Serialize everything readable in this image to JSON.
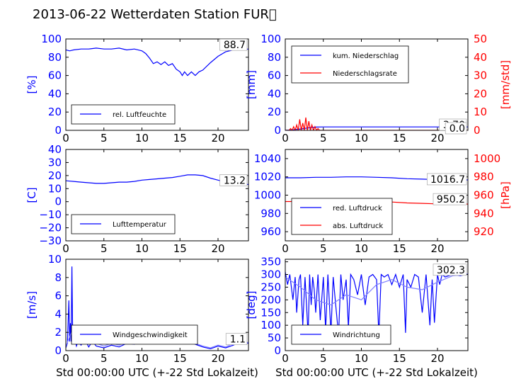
{
  "figure": {
    "title": "2013-06-22 Wetterdaten Station FUR\u0000"
  },
  "colors": {
    "primary": "#0000ff",
    "secondary": "#ff0000",
    "light": "#8080ff"
  },
  "chart_data": [
    {
      "id": "humidity",
      "type": "line",
      "ylabel": "[%]",
      "xlim": [
        0,
        24
      ],
      "ylim": [
        0,
        100
      ],
      "xticks": [
        "0",
        "5",
        "10",
        "15",
        "20"
      ],
      "yticks": [
        "0",
        "20",
        "40",
        "60",
        "80",
        "100"
      ],
      "legend": {
        "placement": "lower-left",
        "entries": [
          "rel. Luftfeuchte"
        ]
      },
      "last_value": "88.7",
      "series": [
        {
          "name": "rel. Luftfeuchte",
          "color": "#0000ff",
          "x": [
            0,
            0.5,
            1,
            2,
            3,
            4,
            5,
            6,
            7,
            8,
            9,
            10,
            10.5,
            11,
            11.5,
            12,
            12.5,
            13,
            13.5,
            14,
            14.5,
            15,
            15.3,
            15.6,
            16,
            16.5,
            17,
            17.5,
            18,
            19,
            20,
            21,
            22,
            23,
            24
          ],
          "y": [
            88,
            87,
            88,
            89,
            89,
            90,
            89,
            89,
            90,
            88,
            89,
            87,
            84,
            79,
            73,
            75,
            72,
            75,
            71,
            73,
            67,
            64,
            60,
            64,
            60,
            64,
            60,
            64,
            66,
            74,
            81,
            86,
            88,
            88,
            89
          ]
        }
      ]
    },
    {
      "id": "precip",
      "type": "line",
      "ylabel": "[mm]",
      "ylabel_right": "[mm/std]",
      "xlim": [
        0,
        24
      ],
      "ylim": [
        0,
        100
      ],
      "ylim_right": [
        0,
        50
      ],
      "xticks": [
        "0",
        "5",
        "10",
        "15",
        "20"
      ],
      "yticks": [
        "0",
        "20",
        "40",
        "60",
        "80",
        "100"
      ],
      "yticks_right": [
        "0",
        "10",
        "20",
        "30",
        "40",
        "50"
      ],
      "legend": {
        "placement": "upper-left",
        "entries": [
          "kum. Niederschlag",
          "Niederschlagsrate"
        ]
      },
      "last_values": [
        "3.70",
        "0.0"
      ],
      "series": [
        {
          "name": "kum. Niederschlag",
          "color": "#0000ff",
          "axis": "left",
          "x": [
            0,
            0.5,
            1,
            1.5,
            2,
            2.5,
            3,
            3.5,
            4,
            5,
            10,
            15,
            20,
            24
          ],
          "y": [
            0,
            0.2,
            0.5,
            1,
            1.5,
            2,
            2.6,
            3.2,
            3.6,
            3.7,
            3.7,
            3.7,
            3.7,
            3.7
          ]
        },
        {
          "name": "Niederschlagsrate",
          "color": "#ff0000",
          "axis": "right",
          "x": [
            0,
            0.5,
            0.7,
            0.9,
            1.1,
            1.3,
            1.5,
            1.7,
            1.9,
            2.1,
            2.3,
            2.5,
            2.7,
            2.9,
            3.1,
            3.3,
            3.5,
            3.7,
            3.9,
            4.1,
            4.3,
            4.5,
            5,
            24
          ],
          "y": [
            0,
            0,
            1,
            0,
            2,
            0,
            3,
            0,
            6,
            0,
            4,
            0,
            7,
            0,
            5,
            0,
            3,
            0,
            2,
            0,
            1,
            0,
            0,
            0
          ]
        }
      ]
    },
    {
      "id": "temperature",
      "type": "line",
      "ylabel": "[C]",
      "xlim": [
        0,
        24
      ],
      "ylim": [
        -30,
        40
      ],
      "xticks": [
        "0",
        "5",
        "10",
        "15",
        "20"
      ],
      "yticks": [
        "−30",
        "−20",
        "−10",
        "0",
        "10",
        "20",
        "30",
        "40"
      ],
      "legend": {
        "placement": "lower-left",
        "entries": [
          "Lufttemperatur"
        ]
      },
      "last_value": "13.2",
      "series": [
        {
          "name": "Lufttemperatur",
          "color": "#0000ff",
          "x": [
            0,
            1,
            2,
            3,
            4,
            5,
            6,
            7,
            8,
            9,
            10,
            11,
            12,
            13,
            14,
            15,
            16,
            17,
            18,
            19,
            20,
            21,
            22,
            23,
            24
          ],
          "y": [
            16,
            15.5,
            15,
            14.5,
            14,
            14,
            14.5,
            15,
            15,
            15.5,
            16.5,
            17,
            17.5,
            18,
            18.5,
            19.5,
            20.5,
            20.5,
            20,
            18,
            16.5,
            15,
            14,
            13.5,
            13.2
          ]
        }
      ]
    },
    {
      "id": "pressure",
      "type": "line",
      "ylabel_right": "[hPa]",
      "xlim": [
        0,
        24
      ],
      "ylim": [
        950,
        1050
      ],
      "ylim_right": [
        910,
        1010
      ],
      "xticks": [
        "0",
        "5",
        "10",
        "15",
        "20"
      ],
      "yticks": [
        "960",
        "980",
        "1000",
        "1020",
        "1040"
      ],
      "yticks_right": [
        "920",
        "940",
        "960",
        "980",
        "1000"
      ],
      "legend": {
        "placement": "lower-left",
        "entries": [
          "red. Luftdruck",
          "abs. Luftdruck"
        ]
      },
      "last_values": [
        "1016.7",
        "950.2"
      ],
      "series": [
        {
          "name": "red. Luftdruck",
          "color": "#0000ff",
          "axis": "left",
          "x": [
            0,
            2,
            4,
            6,
            8,
            10,
            12,
            14,
            16,
            18,
            20,
            22,
            24
          ],
          "y": [
            1019,
            1019,
            1019.5,
            1019.5,
            1020,
            1020,
            1019.5,
            1019,
            1018,
            1017.5,
            1017,
            1016.7,
            1016.7
          ]
        },
        {
          "name": "abs. Luftdruck",
          "color": "#ff0000",
          "axis": "right",
          "x": [
            0,
            2,
            4,
            6,
            8,
            10,
            12,
            14,
            16,
            18,
            20,
            22,
            24
          ],
          "y": [
            953,
            953,
            953.5,
            953.5,
            954,
            953.5,
            953,
            952.5,
            951.5,
            951,
            950.5,
            950.2,
            950.2
          ]
        }
      ]
    },
    {
      "id": "windspeed",
      "type": "line",
      "ylabel": "[m/s]",
      "xlabel": "Std 00:00:00 UTC (+-22 Std Lokalzeit)",
      "xlim": [
        0,
        24
      ],
      "ylim": [
        0,
        10
      ],
      "xticks": [
        "0",
        "5",
        "10",
        "15",
        "20"
      ],
      "yticks": [
        "0",
        "2",
        "4",
        "6",
        "8",
        "10"
      ],
      "legend": {
        "placement": "lower-center",
        "entries": [
          "Windgeschwindigkeit"
        ]
      },
      "last_value": "1.1",
      "series": [
        {
          "name": "Windgeschwindigkeit",
          "color": "#0000ff",
          "x": [
            0,
            0.2,
            0.4,
            0.5,
            0.6,
            0.7,
            0.8,
            0.9,
            1.0,
            1.1,
            1.2,
            1.4,
            1.6,
            2,
            2.5,
            3,
            3.5,
            4,
            5,
            6,
            7,
            8,
            9,
            10,
            11,
            12,
            13,
            14,
            15,
            16,
            17,
            18,
            19,
            20,
            21,
            22,
            23,
            24
          ],
          "y": [
            0.3,
            0.8,
            5.5,
            1,
            3,
            1,
            9.2,
            1.5,
            2,
            0.8,
            1.2,
            0.5,
            1,
            0.6,
            1.2,
            0.4,
            1,
            0.5,
            0.3,
            0.6,
            0.4,
            0.8,
            0.7,
            1.2,
            1.3,
            1.2,
            1.5,
            1,
            1.3,
            1,
            0.7,
            0.4,
            0.2,
            0.5,
            0.3,
            0.6,
            1,
            0.8
          ]
        },
        {
          "name": "",
          "color": "#8080ff",
          "x": [
            0,
            1,
            2,
            3,
            4,
            5,
            6,
            7,
            8,
            9,
            10,
            11,
            12,
            13,
            14,
            15,
            16,
            17,
            18,
            19,
            20,
            21,
            22,
            23,
            24
          ],
          "y": [
            0.5,
            2.5,
            1.5,
            1.2,
            0.8,
            0.5,
            0.8,
            0.6,
            1,
            0.8,
            1.8,
            2,
            1.5,
            1.8,
            1.3,
            1.6,
            1.2,
            0.8,
            0.5,
            0.3,
            0.6,
            0.4,
            0.8,
            1,
            0.9
          ]
        }
      ]
    },
    {
      "id": "winddir",
      "type": "line",
      "ylabel": "[deg]",
      "xlabel": "Std 00:00:00 UTC (+-22 Std Lokalzeit)",
      "xlim": [
        0,
        24
      ],
      "ylim": [
        0,
        360
      ],
      "xticks": [
        "0",
        "5",
        "10",
        "15",
        "20"
      ],
      "yticks": [
        "0",
        "50",
        "100",
        "150",
        "200",
        "250",
        "300",
        "350"
      ],
      "legend": {
        "placement": "lower-left",
        "entries": [
          "Windrichtung"
        ]
      },
      "last_value": "302.3",
      "series": [
        {
          "name": "Windrichtung",
          "color": "#0000ff",
          "x": [
            0,
            0.3,
            0.6,
            1,
            1.3,
            1.5,
            1.8,
            2,
            2.3,
            2.6,
            3,
            3.2,
            3.4,
            3.6,
            3.8,
            4,
            4.3,
            4.6,
            5,
            5.3,
            5.6,
            6,
            6.3,
            6.6,
            7,
            7.3,
            7.6,
            8,
            8.3,
            8.6,
            9,
            9.5,
            10,
            10.5,
            11,
            11.5,
            12,
            12.3,
            12.6,
            13,
            13.5,
            14,
            14.5,
            15,
            15.5,
            15.8,
            16,
            16.5,
            17,
            17.5,
            18,
            18.5,
            19,
            19.3,
            19.6,
            20,
            20.3,
            20.6,
            21,
            22,
            23,
            24
          ],
          "y": [
            310,
            260,
            300,
            200,
            290,
            150,
            280,
            300,
            100,
            290,
            60,
            300,
            180,
            290,
            240,
            150,
            300,
            120,
            290,
            80,
            300,
            70,
            290,
            190,
            60,
            300,
            200,
            280,
            90,
            300,
            280,
            220,
            300,
            180,
            290,
            300,
            280,
            60,
            300,
            290,
            300,
            260,
            300,
            250,
            300,
            70,
            280,
            250,
            300,
            290,
            150,
            300,
            100,
            280,
            110,
            300,
            260,
            300,
            290,
            300,
            295,
            302
          ]
        },
        {
          "name": "",
          "color": "#8080ff",
          "x": [
            0,
            2,
            4,
            6,
            8,
            10,
            12,
            14,
            16,
            18,
            20,
            22,
            24
          ],
          "y": [
            290,
            250,
            200,
            180,
            220,
            200,
            260,
            280,
            250,
            240,
            270,
            295,
            300
          ]
        }
      ]
    }
  ]
}
